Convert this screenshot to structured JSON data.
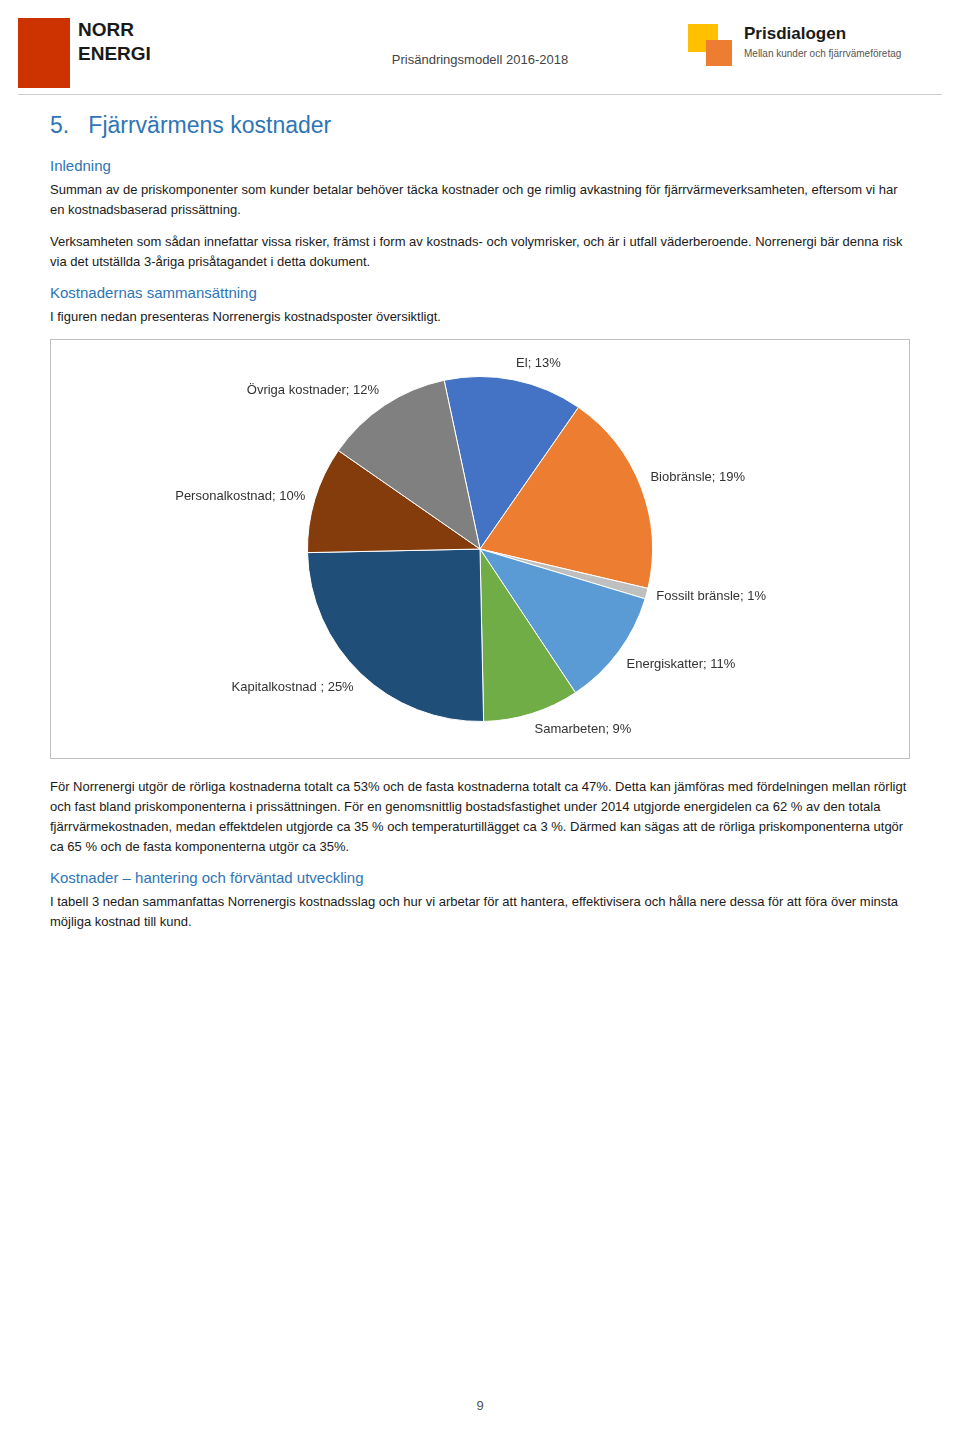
{
  "chart_data": {
    "type": "pie",
    "title": "5.   Fjärrvärmens kostnader",
    "categories": [
      "El; 13%",
      "Biobränsle; 19%",
      "Fossilt bränsle; 1%",
      "Energiskatter; 11%",
      "Samarbeten; 9%",
      "Kapitalkostnad ; 25%",
      "Personalkostnad; 10%",
      "Övriga kostnader; 12%"
    ],
    "values": [
      13,
      19,
      1,
      11,
      9,
      25,
      10,
      12
    ],
    "colors": [
      "#4472C4",
      "#ED7D31",
      "#BFBFBF",
      "#5B9BD5",
      "#70AD47",
      "#1F4E79",
      "#843C0C",
      "#808080"
    ],
    "annotations": [
      "NORR",
      "ENERGI",
      "Prisändringsmodell 2016-2018",
      "Prisdialogen",
      "Mellan kunder och fjärrvämeföretag",
      "Inledning",
      "Summan av de priskomponenter som kunder betalar behöver täcka kostnader och ge rimlig avkastning för fjärrvärmeverksamheten, eftersom vi har en kostnadsbaserad prissättning.",
      "Verksamheten som sådan innefattar vissa risker, främst i form av kostnads- och volymrisker, och är i utfall väderberoende. Norrenergi bär denna risk via det utställda 3-åriga prisåtagandet i detta dokument.",
      "Kostnadernas sammansättning",
      "I figuren nedan presenteras Norrenergis kostnadsposter översiktligt.",
      "För Norrenergi utgör de rörliga kostnaderna totalt ca 53% och de fasta kostnaderna totalt ca 47%. Detta kan jämföras med fördelningen mellan rörligt och fast bland priskomponenterna i prissättningen. För en genomsnittlig bostadsfastighet under 2014 utgjorde energidelen ca 62 % av den totala fjärrvärmekostnaden, medan effektdelen utgjorde ca 35 % och temperaturtillägget ca 3 %. Därmed kan sägas att de rörliga priskomponenterna utgör ca 65 % och de fasta komponenterna utgör ca 35%.",
      "Kostnader – hantering och förväntad utveckling",
      "I tabell 3 nedan sammanfattas Norrenergis kostnadsslag och hur vi arbetar för att hantera, effektivisera och hålla nere dessa för att föra över minsta möjliga kostnad till kund.",
      "9"
    ]
  }
}
